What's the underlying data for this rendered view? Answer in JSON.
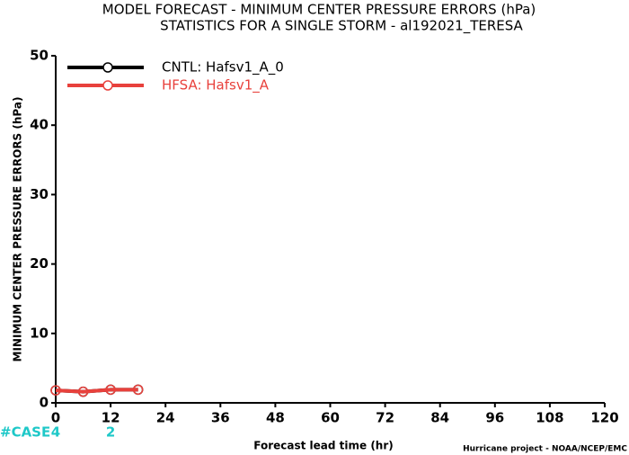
{
  "chart_data": {
    "type": "line",
    "title": "MODEL FORECAST - MINIMUM CENTER PRESSURE ERRORS (hPa)",
    "subtitle": "STATISTICS FOR A SINGLE STORM - al192021_TERESA",
    "x_label": "Forecast lead time (hr)",
    "y_label": "MINIMUM CENTER PRESSURE ERRORS (hPa)",
    "footnote": "Hurricane project - NOAA/NCEP/EMC",
    "x": [
      0,
      6,
      12,
      18
    ],
    "series": [
      {
        "name": "CNTL: Hafsv1_A_0",
        "color": "#000000",
        "values": [
          1.8,
          1.6,
          1.9,
          1.9
        ]
      },
      {
        "name": "HFSA: Hafsv1_A",
        "color": "#e8413c",
        "values": [
          1.8,
          1.6,
          1.9,
          1.9
        ]
      }
    ],
    "xlim": [
      0,
      120
    ],
    "xticks": [
      0,
      12,
      24,
      36,
      48,
      60,
      72,
      84,
      96,
      108,
      120
    ],
    "ylim": [
      0,
      50
    ],
    "yticks": [
      0,
      10,
      20,
      30,
      40,
      50
    ],
    "case_row": {
      "label": "#CASE",
      "x": [
        0,
        12
      ],
      "counts": [
        4,
        2
      ],
      "color": "#1ec8c8"
    }
  }
}
